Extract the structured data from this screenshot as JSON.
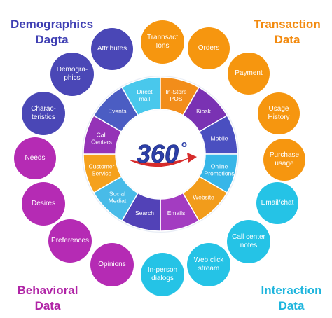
{
  "corners": {
    "demographics": {
      "line1": "Demographics",
      "line2": "Dagta"
    },
    "transaction": {
      "line1": "Transaction",
      "line2": "Data"
    },
    "behavioral": {
      "line1": "Behavioral",
      "line2": "Data"
    },
    "interaction": {
      "line1": "Interaction",
      "line2": "Data"
    }
  },
  "center": {
    "label": "360",
    "degree": "o"
  },
  "colors": {
    "demographics": "#4a47b6",
    "transaction": "#f6960f",
    "behavioral": "#b52bb4",
    "interaction": "#25c3e6",
    "ring": [
      "#49c8ec",
      "#f28d1a",
      "#7a32b3",
      "#4a4fc0",
      "#37b6e8",
      "#f29c1b",
      "#a33cc1",
      "#5242b7",
      "#48bbe8",
      "#f5a11d",
      "#9533b7",
      "#4b5dc3"
    ]
  },
  "bubbles": [
    {
      "id": "attributes",
      "group": "demographics",
      "lines": [
        "Attributes"
      ]
    },
    {
      "id": "demographics",
      "group": "demographics",
      "lines": [
        "Demogra-",
        "phics"
      ]
    },
    {
      "id": "characteristics",
      "group": "demographics",
      "lines": [
        "Charac-",
        "teristics"
      ]
    },
    {
      "id": "transactions",
      "group": "transaction",
      "lines": [
        "Trannsact",
        "Ions"
      ]
    },
    {
      "id": "orders",
      "group": "transaction",
      "lines": [
        "Orders"
      ]
    },
    {
      "id": "payment",
      "group": "transaction",
      "lines": [
        "Payment"
      ]
    },
    {
      "id": "usage-history",
      "group": "transaction",
      "lines": [
        "Usage",
        "History"
      ]
    },
    {
      "id": "purchase-usage",
      "group": "transaction",
      "lines": [
        "Purchase",
        "usage"
      ]
    },
    {
      "id": "needs",
      "group": "behavioral",
      "lines": [
        "Needs"
      ]
    },
    {
      "id": "desires",
      "group": "behavioral",
      "lines": [
        "Desires"
      ]
    },
    {
      "id": "preferences",
      "group": "behavioral",
      "lines": [
        "Preferences"
      ]
    },
    {
      "id": "opinions",
      "group": "behavioral",
      "lines": [
        "Opinions"
      ]
    },
    {
      "id": "email-chat",
      "group": "interaction",
      "lines": [
        "Email/chat"
      ]
    },
    {
      "id": "call-center-notes",
      "group": "interaction",
      "lines": [
        "Call center",
        "notes"
      ]
    },
    {
      "id": "web-click-stream",
      "group": "interaction",
      "lines": [
        "Web click",
        "stream"
      ]
    },
    {
      "id": "in-person-dialogs",
      "group": "interaction",
      "lines": [
        "In-person",
        "dialogs"
      ]
    }
  ],
  "ring_segments": [
    {
      "id": "direct-mail",
      "lines": [
        "Direct",
        "mail"
      ]
    },
    {
      "id": "in-store-pos",
      "lines": [
        "In-Store",
        "POS"
      ]
    },
    {
      "id": "kiosk",
      "lines": [
        "Kiosk"
      ]
    },
    {
      "id": "mobile",
      "lines": [
        "Mobile"
      ]
    },
    {
      "id": "online-promotions",
      "lines": [
        "Online",
        "Promotions"
      ]
    },
    {
      "id": "website",
      "lines": [
        "Website"
      ]
    },
    {
      "id": "emails",
      "lines": [
        "Emails"
      ]
    },
    {
      "id": "search",
      "lines": [
        "Search"
      ]
    },
    {
      "id": "social-media",
      "lines": [
        "Social",
        "Mediat"
      ]
    },
    {
      "id": "customer-service",
      "lines": [
        "Customer",
        "Service"
      ]
    },
    {
      "id": "call-centers",
      "lines": [
        "Call",
        "Centers"
      ]
    },
    {
      "id": "events",
      "lines": [
        "Events"
      ]
    }
  ]
}
